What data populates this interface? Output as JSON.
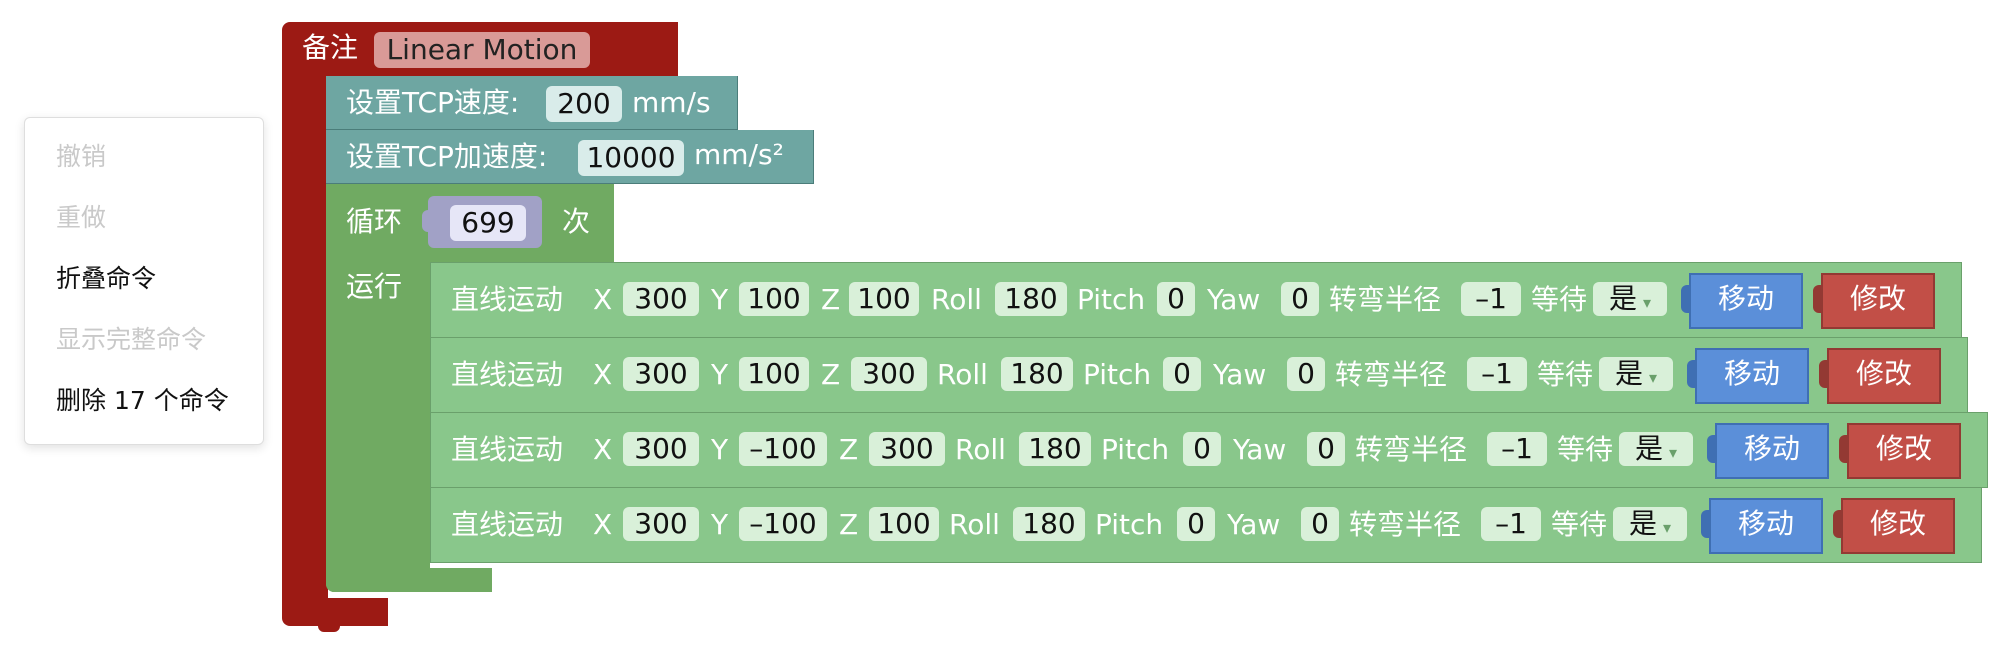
{
  "context_menu": {
    "undo": "撤销",
    "redo": "重做",
    "collapse": "折叠命令",
    "show_full": "显示完整命令",
    "delete": "删除 17 个命令"
  },
  "comment_block": {
    "label": "备注",
    "text": "Linear Motion",
    "color": "#9c1a14"
  },
  "tcp_speed": {
    "label": "设置TCP速度:",
    "value": "200",
    "unit": "mm/s",
    "color": "#6ea6a2"
  },
  "tcp_accel": {
    "label": "设置TCP加速度:",
    "value": "10000",
    "unit": "mm/s²"
  },
  "loop": {
    "label": "循环",
    "count": "699",
    "times": "次",
    "run_label": "运行",
    "color": "#70aa62"
  },
  "axis_labels": {
    "x": "X",
    "y": "Y",
    "z": "Z",
    "roll": "Roll",
    "pitch": "Pitch",
    "yaw": "Yaw",
    "radius": "转弯半径",
    "wait": "等待"
  },
  "motions": [
    {
      "label": "直线运动",
      "x": "300",
      "y": "100",
      "z": "100",
      "roll": "180",
      "pitch": "0",
      "yaw": "0",
      "radius": "–1",
      "wait": "是",
      "move": "移动",
      "edit": "修改"
    },
    {
      "label": "直线运动",
      "x": "300",
      "y": "100",
      "z": "300",
      "roll": "180",
      "pitch": "0",
      "yaw": "0",
      "radius": "–1",
      "wait": "是",
      "move": "移动",
      "edit": "修改"
    },
    {
      "label": "直线运动",
      "x": "300",
      "y": "–100",
      "z": "300",
      "roll": "180",
      "pitch": "0",
      "yaw": "0",
      "radius": "–1",
      "wait": "是",
      "move": "移动",
      "edit": "修改"
    },
    {
      "label": "直线运动",
      "x": "300",
      "y": "–100",
      "z": "100",
      "roll": "180",
      "pitch": "0",
      "yaw": "0",
      "radius": "–1",
      "wait": "是",
      "move": "移动",
      "edit": "修改"
    }
  ],
  "colors": {
    "motion_block": "#89c78b",
    "move_button": "#5b8fd9",
    "edit_button": "#c24f47"
  }
}
